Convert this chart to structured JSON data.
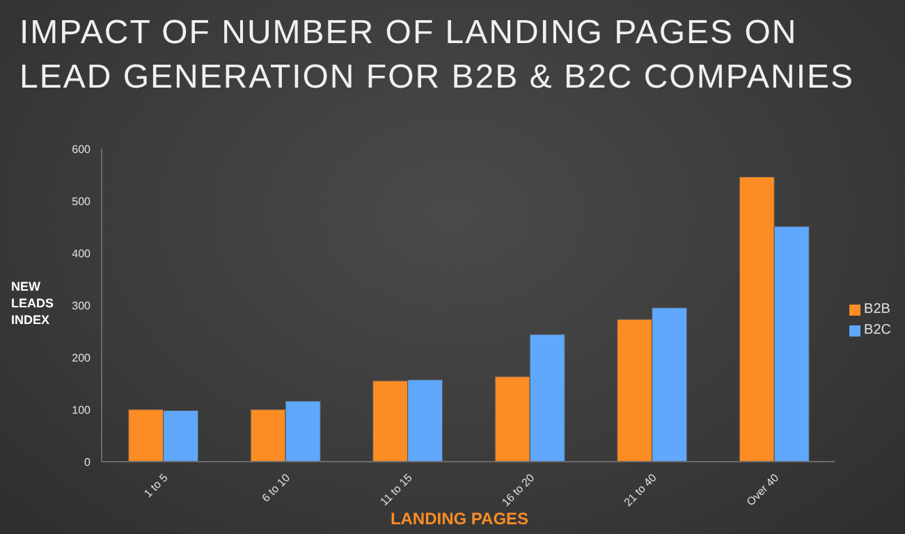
{
  "chart_data": {
    "type": "bar",
    "title": "IMPACT OF NUMBER OF LANDING PAGES ON LEAD GENERATION FOR B2B & B2C COMPANIES",
    "xlabel": "LANDING PAGES",
    "ylabel": "NEW LEADS INDEX",
    "categories": [
      "1 to 5",
      "6 to 10",
      "11 to 15",
      "16 to 20",
      "21 to 40",
      "Over 40"
    ],
    "series": [
      {
        "name": "B2B",
        "color": "#fc8c24",
        "values": [
          100,
          100,
          155,
          163,
          273,
          546
        ]
      },
      {
        "name": "B2C",
        "color": "#5fa8fc",
        "values": [
          98,
          116,
          157,
          244,
          295,
          451
        ]
      }
    ],
    "ylim": [
      0,
      600
    ],
    "yticks": [
      0,
      100,
      200,
      300,
      400,
      500,
      600
    ],
    "legend": "right"
  }
}
